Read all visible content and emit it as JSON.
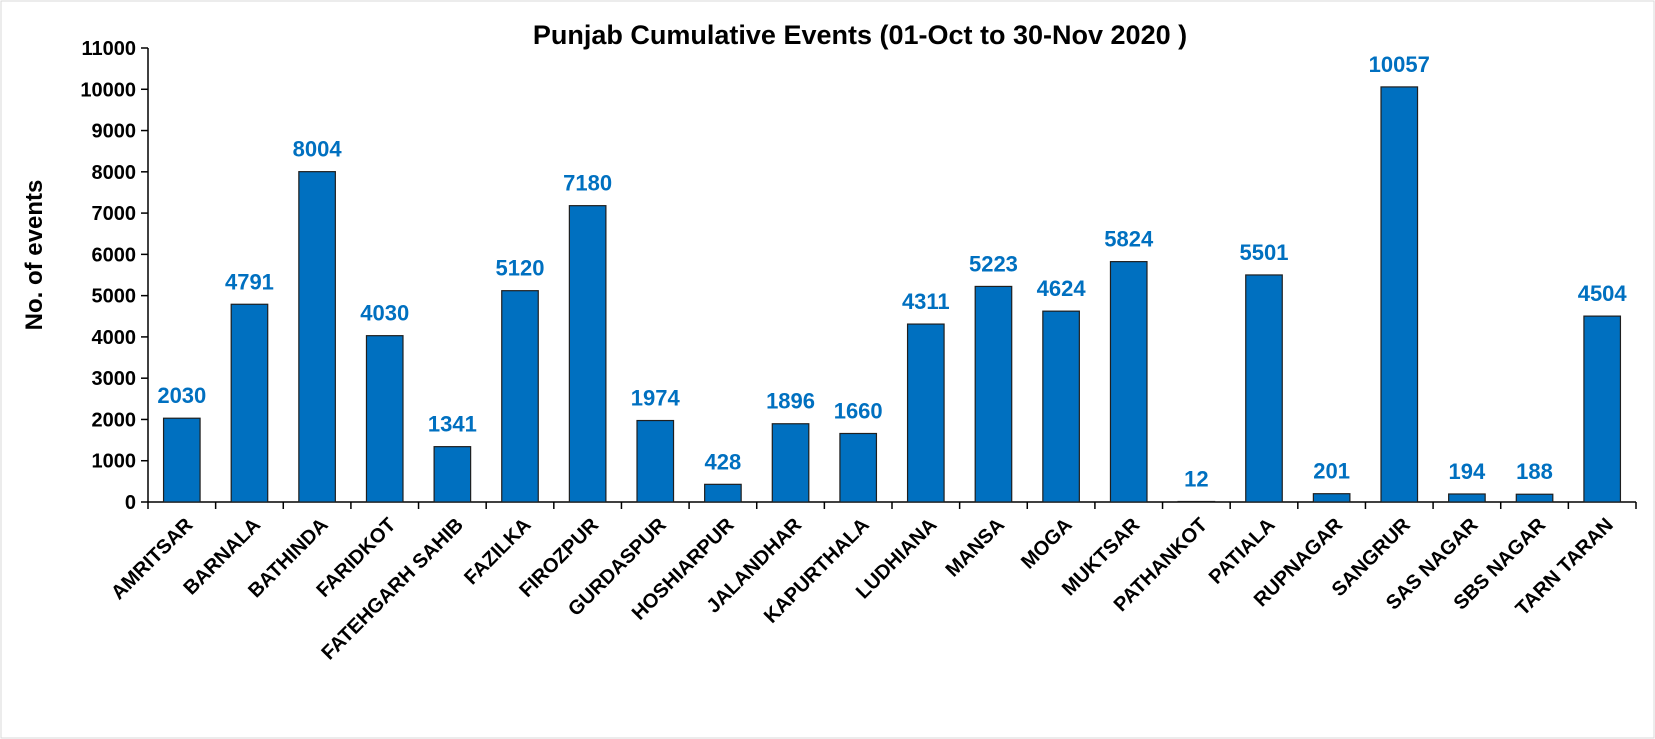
{
  "chart_data": {
    "type": "bar",
    "title": "Punjab Cumulative Events (01-Oct to 30-Nov 2020 )",
    "y_label": "No. of events",
    "categories": [
      "AMRITSAR",
      "BARNALA",
      "BATHINDA",
      "FARIDKOT",
      "FATEHGARH SAHIB",
      "FAZILKA",
      "FIROZPUR",
      "GURDASPUR",
      "HOSHIARPUR",
      "JALANDHAR",
      "KAPURTHALA",
      "LUDHIANA",
      "MANSA",
      "MOGA",
      "MUKTSAR",
      "PATHANKOT",
      "PATIALA",
      "RUPNAGAR",
      "SANGRUR",
      "SAS NAGAR",
      "SBS NAGAR",
      "TARN TARAN"
    ],
    "values": [
      2030,
      4791,
      8004,
      4030,
      1341,
      5120,
      7180,
      1974,
      428,
      1896,
      1660,
      4311,
      5223,
      4624,
      5824,
      12,
      5501,
      201,
      10057,
      194,
      188,
      4504
    ],
    "color": "#0070c0",
    "label_color": "#0070c0",
    "ylim": [
      0,
      11000
    ],
    "yticks": [
      0,
      1000,
      2000,
      3000,
      4000,
      5000,
      6000,
      7000,
      8000,
      9000,
      10000,
      11000
    ],
    "grid": false
  }
}
